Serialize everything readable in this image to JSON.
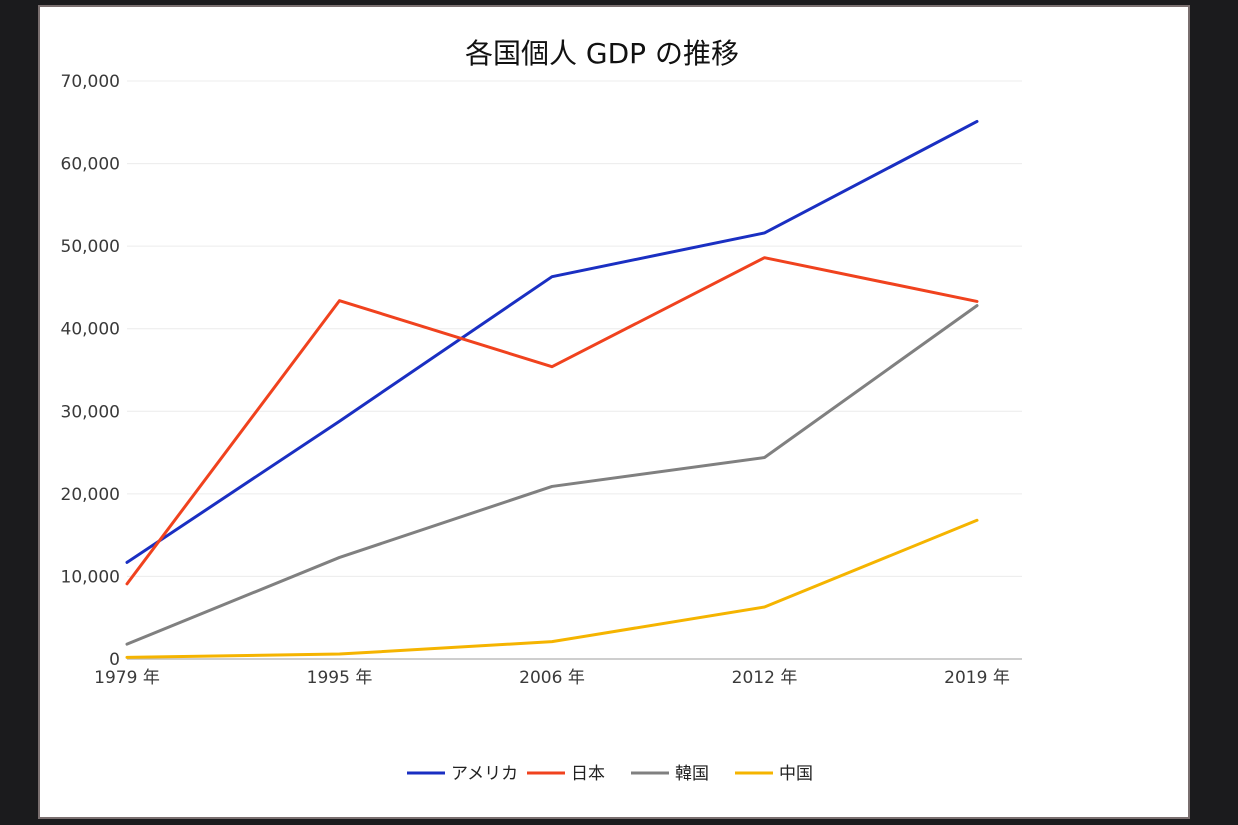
{
  "chart_data": {
    "type": "line",
    "title": "各国個人 GDP の推移",
    "categories": [
      "1979 年",
      "1995 年",
      "2006 年",
      "2012 年",
      "2019 年"
    ],
    "y_ticks": [
      "0",
      "10,000",
      "20,000",
      "30,000",
      "40,000",
      "50,000",
      "60,000",
      "70,000"
    ],
    "ylim": [
      0,
      70000
    ],
    "grid": true,
    "legend_position": "bottom",
    "series": [
      {
        "name": "アメリカ",
        "color": "#1a2fc2",
        "values": [
          11700,
          28800,
          46300,
          51600,
          65100
        ]
      },
      {
        "name": "日本",
        "color": "#f0421e",
        "values": [
          9100,
          43400,
          35400,
          48600,
          43300
        ]
      },
      {
        "name": "韓国",
        "color": "#808080",
        "values": [
          1800,
          12300,
          20900,
          24400,
          42800
        ]
      },
      {
        "name": "中国",
        "color": "#f5b400",
        "values": [
          200,
          600,
          2100,
          6300,
          16800
        ]
      }
    ]
  }
}
